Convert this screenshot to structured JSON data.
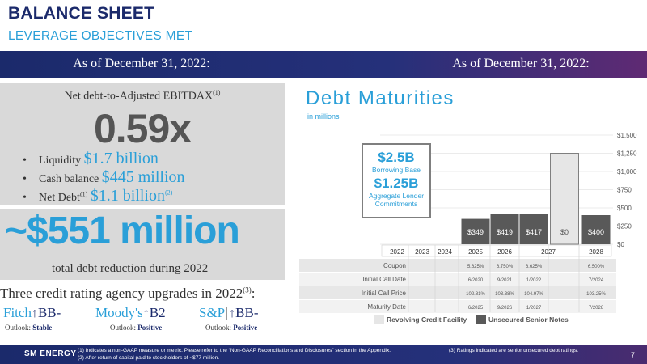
{
  "header": {
    "title": "BALANCE SHEET",
    "subtitle": "LEVERAGE OBJECTIVES MET"
  },
  "asof_left": "As of December 31, 2022:",
  "asof_right": "As of December 31, 2022:",
  "metrics": {
    "net_debt_label": "Net debt-to-Adjusted EBITDAX",
    "net_debt_label_sup": "(1)",
    "net_debt_value": "0.59x",
    "bullets": [
      {
        "label": "Liquidity",
        "sup": "",
        "value": "$1.7 billion",
        "value_sup": ""
      },
      {
        "label": "Cash balance",
        "sup": "",
        "value": "$445 million",
        "value_sup": ""
      },
      {
        "label": "Net Debt",
        "sup": "(1)",
        "value": "$1.1 billion",
        "value_sup": "(2)"
      }
    ],
    "debt_reduction": "~$551 million",
    "debt_reduction_sub": "total debt reduction during 2022"
  },
  "credit": {
    "title": "Three credit rating agency upgrades in 2022",
    "title_sup": "(3)",
    "agencies": [
      {
        "name": "Fitch",
        "rating": "BB-",
        "outlook_label": "Outlook:",
        "outlook": "Stable"
      },
      {
        "name": "Moody's",
        "rating": "B2",
        "outlook_label": "Outlook:",
        "outlook": "Positive"
      },
      {
        "name": "S&P",
        "rating": "BB-",
        "outlook_label": "Outlook:",
        "outlook": "Positive"
      }
    ]
  },
  "footer": {
    "logo": "SM ENERGY",
    "note1": "(1)    Indicates a non-GAAP measure or metric. Please refer to the “Non-GAAP Reconciliations and Disclosures” section in the Appendix.",
    "note2": "(2)    After return of capital paid to stockholders of ~$77 million.",
    "note3": "(3) Ratings indicated are senior unsecured debt ratings.",
    "page": "7"
  },
  "chart_data": {
    "type": "bar",
    "title": "Debt Maturities",
    "subtitle": "in millions",
    "categories": [
      "2022",
      "2023",
      "2024",
      "2025",
      "2026",
      "2027",
      "2027b",
      "2028"
    ],
    "category_labels": [
      "2022",
      "2023",
      "2024",
      "2025",
      "2026",
      "2027",
      "",
      "2028"
    ],
    "series": [
      {
        "name": "Revolving Credit Facility",
        "color": "#e6e6e6",
        "values": [
          null,
          null,
          null,
          null,
          null,
          null,
          1250,
          null
        ]
      },
      {
        "name": "Unsecured Senior Notes",
        "color": "#595959",
        "values": [
          null,
          null,
          null,
          349,
          419,
          417,
          null,
          400
        ]
      }
    ],
    "value_labels": [
      "",
      "",
      "",
      "$349",
      "$419",
      "$417",
      "$0",
      "$400"
    ],
    "ylim": [
      0,
      1500
    ],
    "yticks": [
      "$0",
      "$250",
      "$500",
      "$750",
      "$1,000",
      "$1,250",
      "$1,500"
    ],
    "ytick_values": [
      0,
      250,
      500,
      750,
      1000,
      1250,
      1500
    ],
    "grid": true,
    "legend": "bottom",
    "callout": {
      "line1": "$2.5B",
      "line2": "Borrowing Base",
      "line3": "$1.25B",
      "line4": "Aggregate Lender",
      "line5": "Commitments"
    },
    "table": {
      "rows": [
        {
          "label": "Coupon",
          "values": [
            "",
            "",
            "",
            "5.625%",
            "6.750%",
            "6.625%",
            "",
            "6.500%"
          ]
        },
        {
          "label": "Initial Call Date",
          "values": [
            "",
            "",
            "",
            "6/2020",
            "9/2021",
            "1/2022",
            "",
            "7/2024"
          ]
        },
        {
          "label": "Initial Call Price",
          "values": [
            "",
            "",
            "",
            "102.81%",
            "103.38%",
            "104.97%",
            "",
            "103.25%"
          ]
        },
        {
          "label": "Maturity Date",
          "values": [
            "",
            "",
            "",
            "6/2025",
            "9/2026",
            "1/2027",
            "",
            "7/2028"
          ]
        }
      ]
    }
  }
}
